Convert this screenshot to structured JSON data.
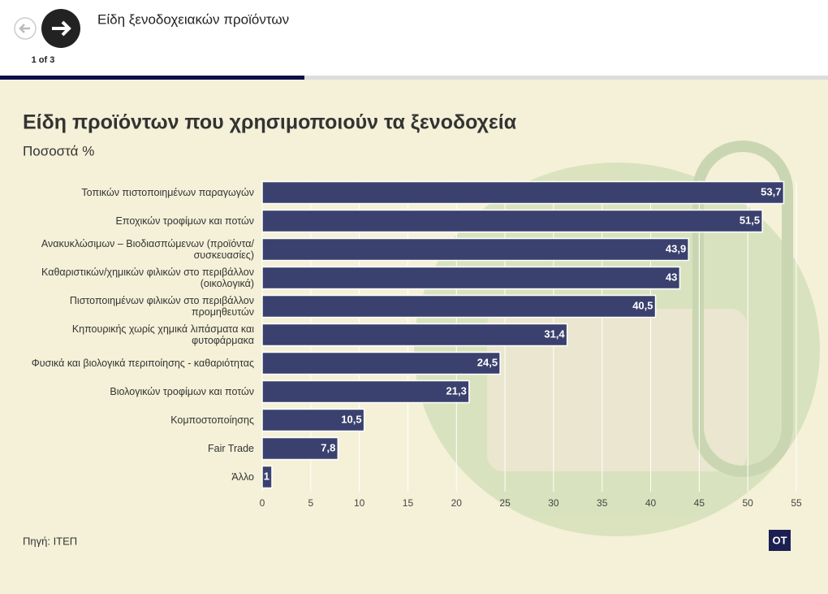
{
  "header": {
    "title": "Είδη ξενοδοχειακών προϊόντων",
    "pager": "1 of 3"
  },
  "chart_data": {
    "type": "bar",
    "orientation": "horizontal",
    "title": "Είδη προϊόντων που χρησιμοποιούν τα ξενοδοχεία",
    "subtitle": "Ποσοστά %",
    "categories": [
      "Τοπικών πιστοποιημένων παραγωγών",
      "Εποχικών τροφίμων και ποτών",
      "Ανακυκλώσιμων – Βιοδιασπώμενων (προϊόντα/συσκευασίες)",
      "Καθαριστικών/χημικών φιλικών στο περιβάλλον (οικολογικά)",
      "Πιστοποιημένων φιλικών στο περιβάλλον προμηθευτών",
      "Κηπουρικής χωρίς χημικά λιπάσματα και φυτοφάρμακα",
      "Φυσικά και βιολογικά περιποίησης - καθαριότητας",
      "Βιολογικών τροφίμων και ποτών",
      "Κομποστοποίησης",
      "Fair Trade",
      "Άλλο"
    ],
    "values": [
      53.7,
      51.5,
      43.9,
      43,
      40.5,
      31.4,
      24.5,
      21.3,
      10.5,
      7.8,
      1
    ],
    "value_labels": [
      "53,7",
      "51,5",
      "43,9",
      "43",
      "40,5",
      "31,4",
      "24,5",
      "21,3",
      "10,5",
      "7,8",
      "1"
    ],
    "color": "#3b416e",
    "xlim": [
      0,
      55
    ],
    "xticks": [
      0,
      5,
      10,
      15,
      20,
      25,
      30,
      35,
      40,
      45,
      50,
      55
    ],
    "grid": true,
    "source": "Πηγή: ΙΤΕΠ",
    "logo": "OT"
  }
}
